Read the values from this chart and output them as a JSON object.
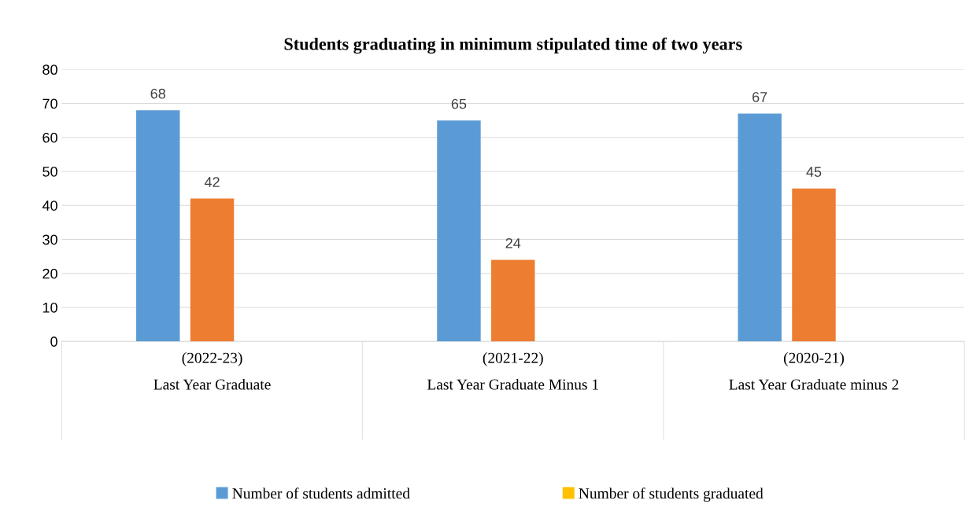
{
  "chart_data": {
    "type": "bar",
    "title": "Students graduating in minimum stipulated time of two years",
    "categories": [
      "(2022-23)\nLast Year Graduate",
      "(2021-22)\nLast Year Graduate Minus 1",
      "(2020-21)\nLast Year Graduate minus 2"
    ],
    "series": [
      {
        "name": "Number of students admitted",
        "color": "#5b9bd5",
        "values": [
          68,
          65,
          67
        ]
      },
      {
        "color": "#ed7d31",
        "values": [
          42,
          24,
          45
        ]
      },
      {
        "name": "Number of students graduated",
        "color": "#ffc000",
        "values": [
          null,
          null,
          null
        ]
      }
    ],
    "ylim": [
      0,
      80
    ],
    "yticks": [
      0,
      10,
      20,
      30,
      40,
      50,
      60,
      70,
      80
    ],
    "grid": "y",
    "legend": "bottom",
    "data_labels": true
  }
}
